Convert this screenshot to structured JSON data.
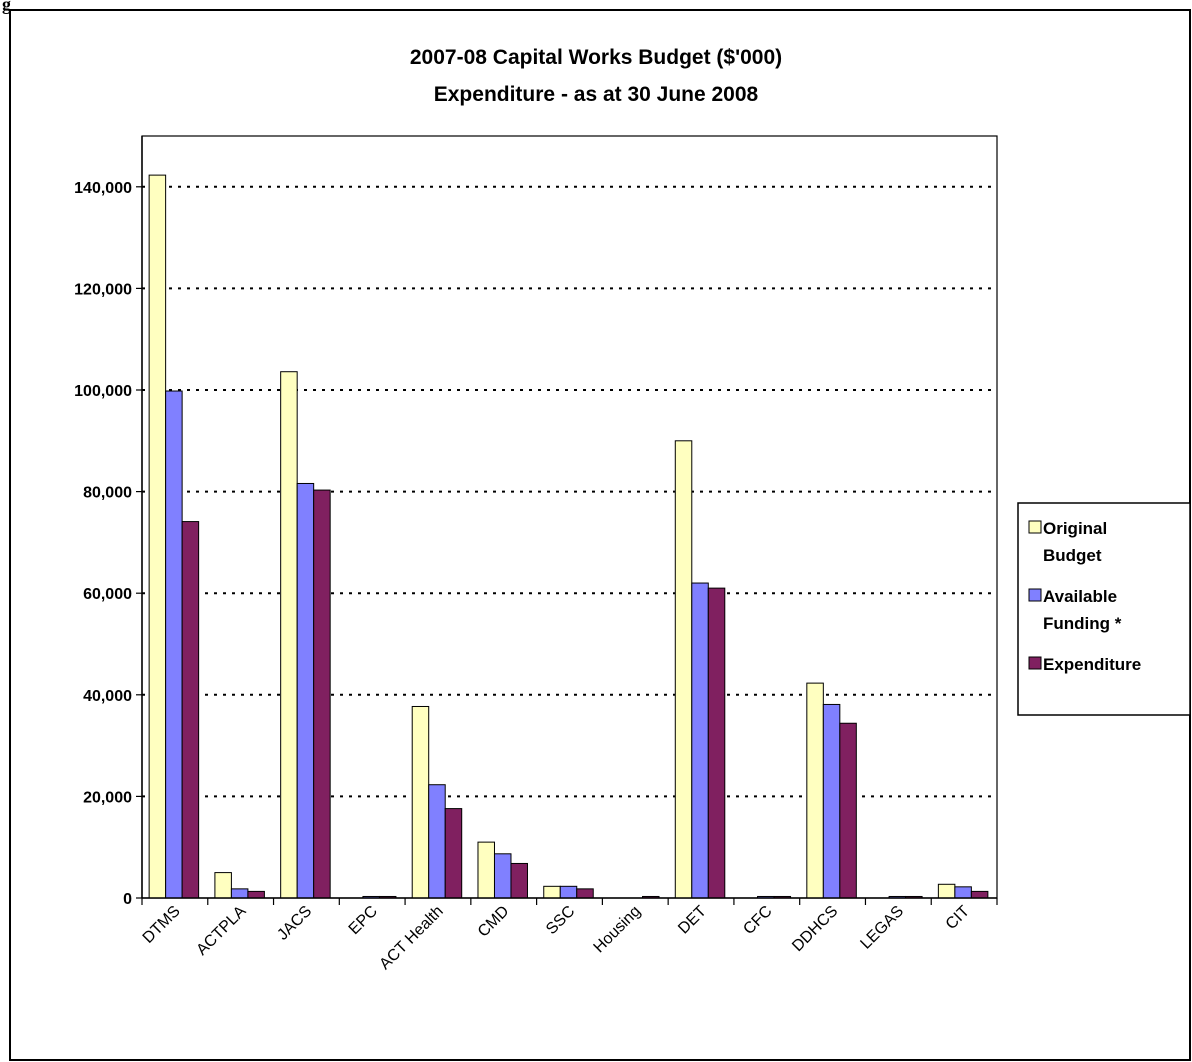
{
  "figure_label": "g",
  "colors": {
    "original_budget": "#FFFFC0",
    "available_funding": "#8080FF",
    "expenditure": "#802060",
    "grid": "#000000",
    "axis": "#000000"
  },
  "chart_data": {
    "type": "bar",
    "title": "2007-08 Capital Works Budget ($'000)",
    "subtitle": "Expenditure - as at 30 June 2008",
    "xlabel": "",
    "ylabel": "",
    "ylim": [
      0,
      150000
    ],
    "ytick_values": [
      0,
      20000,
      40000,
      60000,
      80000,
      100000,
      120000,
      140000
    ],
    "ytick_labels": [
      "0",
      "20,000",
      "40,000",
      "60,000",
      "80,000",
      "100,000",
      "120,000",
      "140,000"
    ],
    "grid": true,
    "legend_position": "right",
    "categories": [
      "DTMS",
      "ACTPLA",
      "JACS",
      "EPC",
      "ACT Health",
      "CMD",
      "SSC",
      "Housing",
      "DET",
      "CFC",
      "DDHCS",
      "LEGAS",
      "CIT"
    ],
    "series": [
      {
        "name": "Original Budget",
        "legend_lines": [
          "Original",
          "Budget"
        ],
        "color_key": "original_budget",
        "values": [
          142300,
          5000,
          103600,
          0,
          37700,
          11000,
          2300,
          0,
          90000,
          0,
          42300,
          0,
          2700
        ]
      },
      {
        "name": "Available Funding *",
        "legend_lines": [
          "Available",
          "Funding *"
        ],
        "color_key": "available_funding",
        "values": [
          99800,
          1800,
          81600,
          300,
          22300,
          8700,
          2300,
          0,
          62000,
          300,
          38100,
          300,
          2200
        ]
      },
      {
        "name": "Expenditure",
        "legend_lines": [
          "Expenditure"
        ],
        "color_key": "expenditure",
        "values": [
          74100,
          1300,
          80300,
          300,
          17600,
          6800,
          1800,
          300,
          61000,
          300,
          34400,
          300,
          1300
        ]
      }
    ]
  }
}
